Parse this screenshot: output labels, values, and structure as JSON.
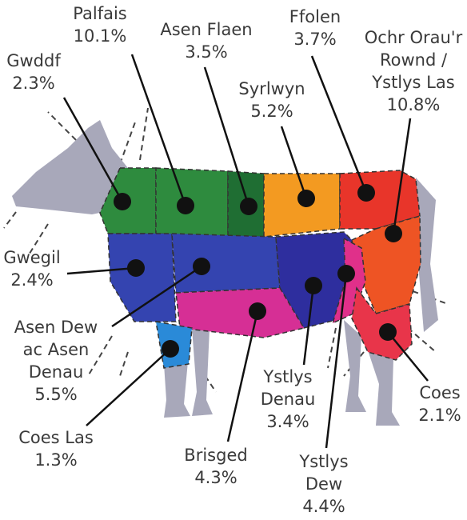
{
  "cuts": [
    {
      "name": [
        "Palfais"
      ],
      "share": "10.1%"
    },
    {
      "name": [
        "Asen Flaen"
      ],
      "share": "3.5%"
    },
    {
      "name": [
        "Ffolen"
      ],
      "share": "3.7%"
    },
    {
      "name": [
        "Gwddf"
      ],
      "share": "2.3%"
    },
    {
      "name": [
        "Ochr Orau'r",
        "Rownd /",
        "Ystlys Las"
      ],
      "share": "10.8%"
    },
    {
      "name": [
        "Syrlwyn"
      ],
      "share": "5.2%"
    },
    {
      "name": [
        "Gwegil"
      ],
      "share": "2.4%"
    },
    {
      "name": [
        "Asen Dew",
        "ac Asen",
        "Denau"
      ],
      "share": "5.5%"
    },
    {
      "name": [
        "Coes Las"
      ],
      "share": "1.3%"
    },
    {
      "name": [
        "Brisged"
      ],
      "share": "4.3%"
    },
    {
      "name": [
        "Ystlys",
        "Denau"
      ],
      "share": "3.4%"
    },
    {
      "name": [
        "Ystlys",
        "Dew"
      ],
      "share": "4.4%"
    },
    {
      "name": [
        "Coes"
      ],
      "share": "2.1%"
    }
  ]
}
